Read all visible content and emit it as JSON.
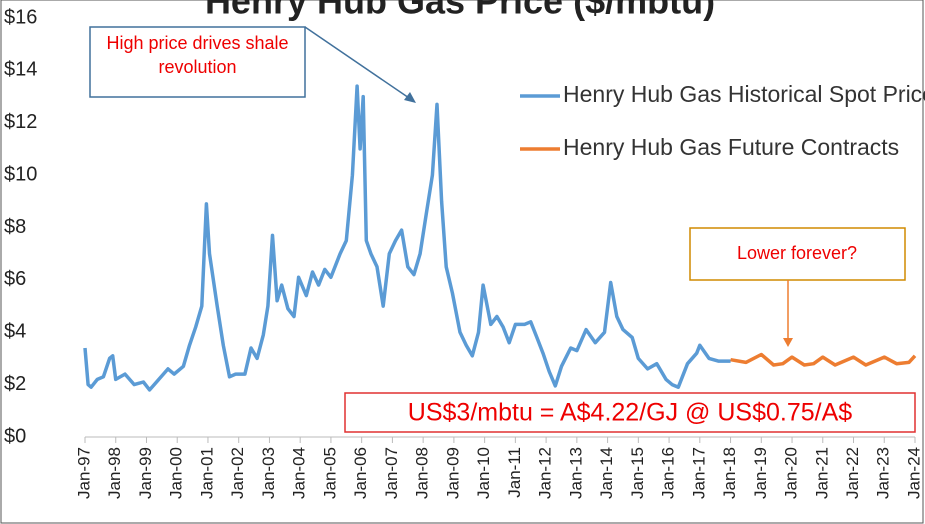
{
  "chart_data": {
    "type": "line",
    "title": "Henry Hub Gas Price ($/mbtu)",
    "xlim": [
      1997,
      2024
    ],
    "xticks": [
      {
        "value": 1997,
        "label": "Jan-97"
      },
      {
        "value": 1998,
        "label": "Jan-98"
      },
      {
        "value": 1999,
        "label": "Jan-99"
      },
      {
        "value": 2000,
        "label": "Jan-00"
      },
      {
        "value": 2001,
        "label": "Jan-01"
      },
      {
        "value": 2002,
        "label": "Jan-02"
      },
      {
        "value": 2003,
        "label": "Jan-03"
      },
      {
        "value": 2004,
        "label": "Jan-04"
      },
      {
        "value": 2005,
        "label": "Jan-05"
      },
      {
        "value": 2006,
        "label": "Jan-06"
      },
      {
        "value": 2007,
        "label": "Jan-07"
      },
      {
        "value": 2008,
        "label": "Jan-08"
      },
      {
        "value": 2009,
        "label": "Jan-09"
      },
      {
        "value": 2010,
        "label": "Jan-10"
      },
      {
        "value": 2011,
        "label": "Jan-11"
      },
      {
        "value": 2012,
        "label": "Jan-12"
      },
      {
        "value": 2013,
        "label": "Jan-13"
      },
      {
        "value": 2014,
        "label": "Jan-14"
      },
      {
        "value": 2015,
        "label": "Jan-15"
      },
      {
        "value": 2016,
        "label": "Jan-16"
      },
      {
        "value": 2017,
        "label": "Jan-17"
      },
      {
        "value": 2018,
        "label": "Jan-18"
      },
      {
        "value": 2019,
        "label": "Jan-19"
      },
      {
        "value": 2020,
        "label": "Jan-20"
      },
      {
        "value": 2021,
        "label": "Jan-21"
      },
      {
        "value": 2022,
        "label": "Jan-22"
      },
      {
        "value": 2023,
        "label": "Jan-23"
      },
      {
        "value": 2024,
        "label": "Jan-24"
      }
    ],
    "ylim": [
      0,
      16
    ],
    "yticks": [
      {
        "value": 0,
        "label": "$0"
      },
      {
        "value": 2,
        "label": "$2"
      },
      {
        "value": 4,
        "label": "$4"
      },
      {
        "value": 6,
        "label": "$6"
      },
      {
        "value": 8,
        "label": "$8"
      },
      {
        "value": 10,
        "label": "$10"
      },
      {
        "value": 12,
        "label": "$12"
      },
      {
        "value": 14,
        "label": "$14"
      },
      {
        "value": 16,
        "label": "$16"
      }
    ],
    "legend": "top-right",
    "series": [
      {
        "name": "Henry Hub Gas Historical Spot Price",
        "color": "#5b9bd5",
        "x": [
          1997.0,
          1997.1,
          1997.2,
          1997.4,
          1997.6,
          1997.8,
          1997.9,
          1998.0,
          1998.3,
          1998.6,
          1998.9,
          1999.1,
          1999.4,
          1999.7,
          1999.9,
          2000.2,
          2000.4,
          2000.6,
          2000.8,
          2000.95,
          2001.05,
          2001.3,
          2001.5,
          2001.7,
          2001.9,
          2002.2,
          2002.4,
          2002.6,
          2002.8,
          2002.95,
          2003.1,
          2003.25,
          2003.4,
          2003.6,
          2003.8,
          2003.95,
          2004.2,
          2004.4,
          2004.6,
          2004.8,
          2005.0,
          2005.3,
          2005.5,
          2005.7,
          2005.85,
          2005.95,
          2006.05,
          2006.15,
          2006.3,
          2006.5,
          2006.7,
          2006.9,
          2007.1,
          2007.3,
          2007.5,
          2007.7,
          2007.9,
          2008.1,
          2008.3,
          2008.45,
          2008.6,
          2008.75,
          2008.95,
          2009.2,
          2009.4,
          2009.6,
          2009.8,
          2009.95,
          2010.2,
          2010.4,
          2010.6,
          2010.8,
          2011.0,
          2011.3,
          2011.5,
          2011.7,
          2011.9,
          2012.1,
          2012.3,
          2012.5,
          2012.8,
          2013.0,
          2013.3,
          2013.6,
          2013.9,
          2014.1,
          2014.3,
          2014.5,
          2014.8,
          2015.0,
          2015.3,
          2015.6,
          2015.9,
          2016.1,
          2016.3,
          2016.6,
          2016.9,
          2017.0,
          2017.3,
          2017.6,
          2017.9,
          2018.0
        ],
        "values": [
          3.4,
          2.0,
          1.9,
          2.2,
          2.3,
          3.0,
          3.1,
          2.2,
          2.4,
          2.0,
          2.1,
          1.8,
          2.2,
          2.6,
          2.4,
          2.7,
          3.5,
          4.2,
          5.0,
          8.9,
          7.0,
          5.0,
          3.5,
          2.3,
          2.4,
          2.4,
          3.4,
          3.0,
          3.9,
          5.0,
          7.7,
          5.2,
          5.8,
          4.9,
          4.6,
          6.1,
          5.4,
          6.3,
          5.8,
          6.4,
          6.1,
          7.0,
          7.5,
          10.0,
          13.4,
          11.0,
          13.0,
          7.5,
          7.0,
          6.5,
          5.0,
          7.0,
          7.5,
          7.9,
          6.5,
          6.2,
          7.0,
          8.5,
          10.0,
          12.7,
          9.0,
          6.5,
          5.5,
          4.0,
          3.5,
          3.1,
          4.0,
          5.8,
          4.3,
          4.6,
          4.2,
          3.6,
          4.3,
          4.3,
          4.4,
          3.8,
          3.2,
          2.5,
          1.95,
          2.7,
          3.4,
          3.3,
          4.1,
          3.6,
          4.0,
          5.9,
          4.6,
          4.1,
          3.8,
          3.0,
          2.6,
          2.8,
          2.2,
          2.0,
          1.9,
          2.8,
          3.2,
          3.5,
          3.0,
          2.9,
          2.9,
          2.9
        ]
      },
      {
        "name": "Henry Hub Gas Future Contracts",
        "color": "#ed7d31",
        "x": [
          2018.0,
          2018.5,
          2019.0,
          2019.4,
          2019.7,
          2020.0,
          2020.4,
          2020.7,
          2021.0,
          2021.4,
          2022.0,
          2022.4,
          2023.0,
          2023.4,
          2023.8,
          2024.0
        ],
        "values": [
          2.95,
          2.85,
          3.15,
          2.75,
          2.8,
          3.05,
          2.75,
          2.8,
          3.05,
          2.75,
          3.05,
          2.75,
          3.05,
          2.8,
          2.85,
          3.1
        ]
      }
    ],
    "annotations": [
      "High price drives shale revolution",
      "Lower forever?",
      "US$3/mbtu = A$4.22/GJ @ US$0.75/A$"
    ]
  }
}
